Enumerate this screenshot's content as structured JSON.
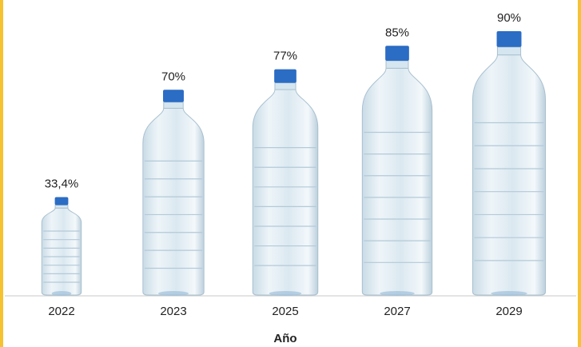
{
  "chart_data": {
    "type": "bar",
    "x_label": "Año",
    "categories": [
      "2022",
      "2023",
      "2025",
      "2027",
      "2029"
    ],
    "values": [
      33.4,
      70,
      77,
      85,
      90
    ],
    "value_labels": [
      "33,4%",
      "70%",
      "77%",
      "85%",
      "90%"
    ],
    "color": "#2b6cc4"
  }
}
